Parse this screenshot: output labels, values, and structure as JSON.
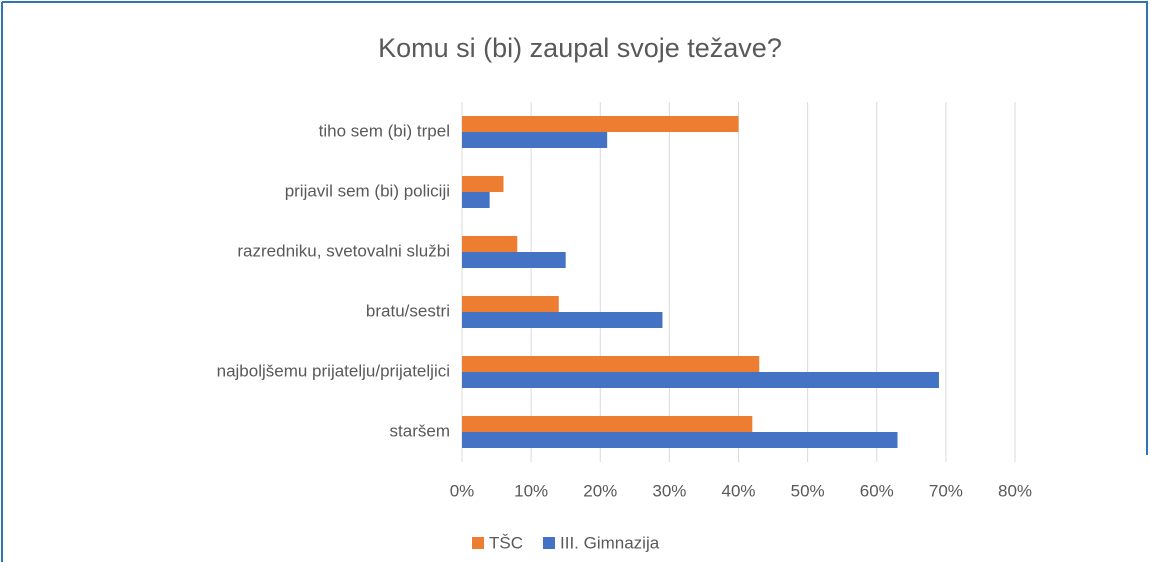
{
  "chart_data": {
    "type": "bar",
    "orientation": "horizontal",
    "title": "Komu si (bi) zaupal svoje težave?",
    "categories": [
      "tiho sem (bi) trpel",
      "prijavil sem (bi) policiji",
      "razredniku, svetovalni službi",
      "bratu/sestri",
      "najboljšemu prijatelju/prijateljici",
      "staršem"
    ],
    "series": [
      {
        "name": "TŠC",
        "color": "#ed7d31",
        "values": [
          40,
          6,
          8,
          14,
          43,
          42
        ]
      },
      {
        "name": "III. Gimnazija",
        "color": "#4472c4",
        "values": [
          21,
          4,
          15,
          29,
          69,
          63
        ]
      }
    ],
    "xlim": [
      0,
      80
    ],
    "xticks": [
      {
        "value": 0,
        "label": "0%"
      },
      {
        "value": 10,
        "label": "10%"
      },
      {
        "value": 20,
        "label": "20%"
      },
      {
        "value": 30,
        "label": "30%"
      },
      {
        "value": 40,
        "label": "40%"
      },
      {
        "value": 50,
        "label": "50%"
      },
      {
        "value": 60,
        "label": "60%"
      },
      {
        "value": 70,
        "label": "70%"
      },
      {
        "value": 80,
        "label": "80%"
      }
    ],
    "grid": true,
    "legend": "bottom"
  }
}
